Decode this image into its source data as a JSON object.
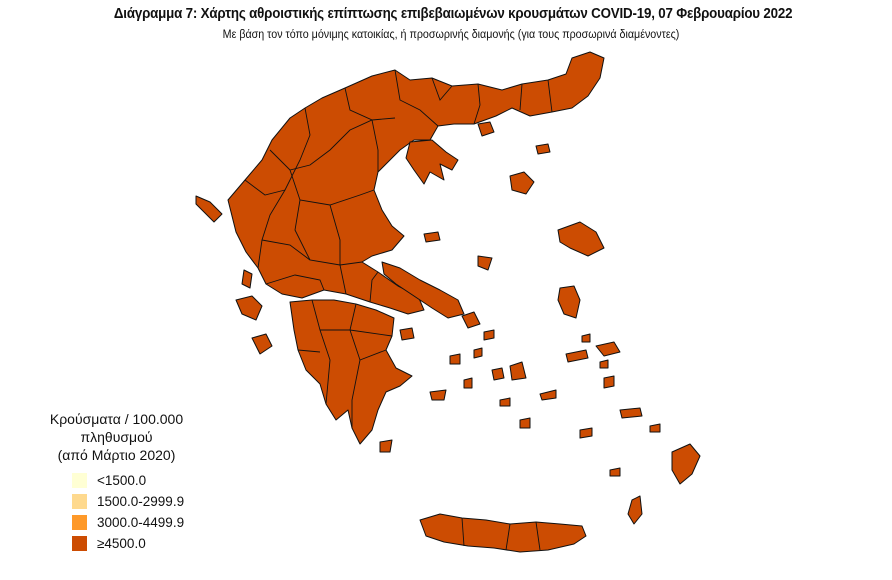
{
  "title": "Διάγραμμα 7: Χάρτης αθροιστικής επίπτωσης επιβεβαιωμένων κρουσμάτων COVID-19, 07 Φεβρουαρίου 2022",
  "subtitle": "Με βάση τον τόπο μόνιμης κατοικίας, ή προσωρινής διαμονής (για τους προσωρινά διαμένοντες)",
  "legend": {
    "title_line1": "Κρούσματα / 100.000 πληθυσμού",
    "title_line2": "(από Μάρτιο 2020)",
    "classes": [
      {
        "label": "<1500.0",
        "color": "#FFFFD4"
      },
      {
        "label": "1500.0-2999.9",
        "color": "#FED98E"
      },
      {
        "label": "3000.0-4499.9",
        "color": "#FE9929"
      },
      {
        "label": "≥4500.0",
        "color": "#CC4C02"
      }
    ]
  },
  "map": {
    "region": "Greece",
    "all_units_class": "≥4500.0",
    "fill_color": "#CC4C02"
  }
}
